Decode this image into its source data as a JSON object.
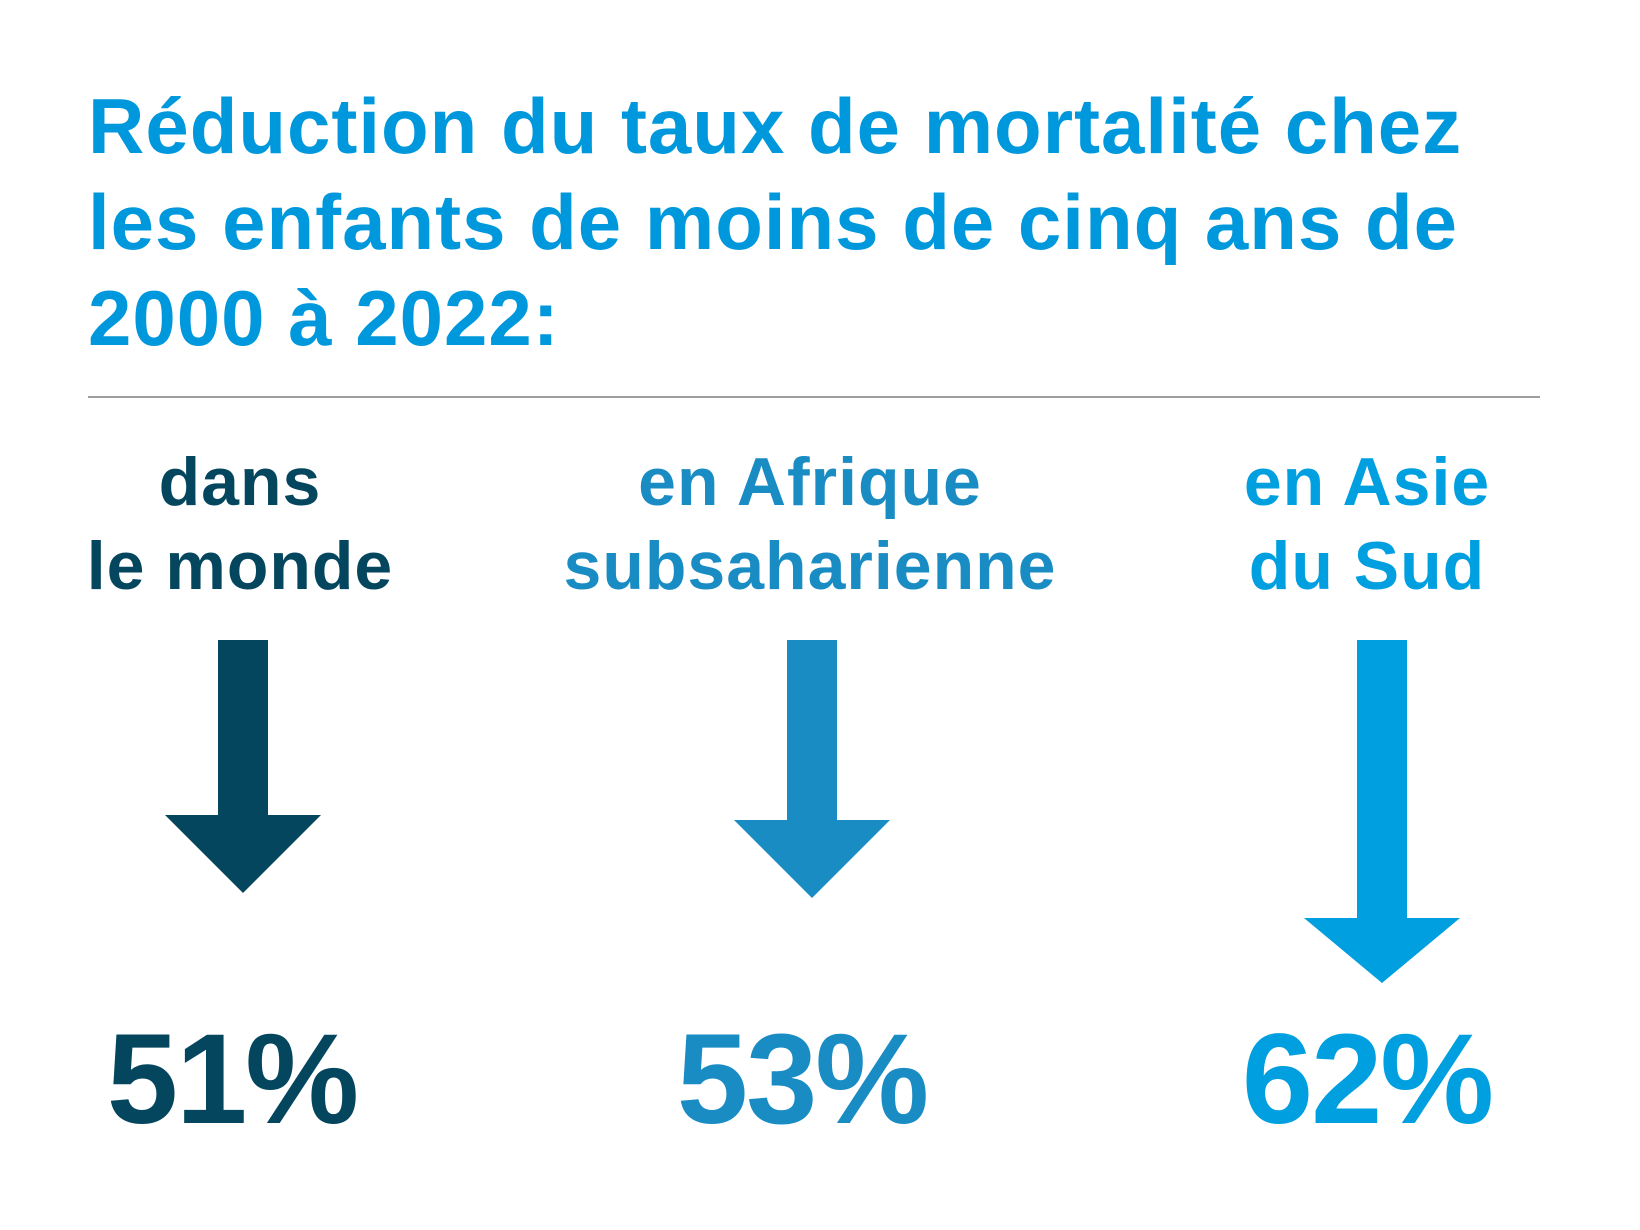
{
  "colors": {
    "title": "#0098dc",
    "world": "#05465f",
    "africa": "#1a8cc4",
    "asia": "#009fe0",
    "divider": "#9e9e9e"
  },
  "title": {
    "line1": "Réduction du taux de mortalité chez",
    "line2": "les enfants de moins de cinq ans de",
    "line3": "2000 à 2022:"
  },
  "regions": [
    {
      "label_line1": "dans",
      "label_line2": "le monde",
      "value": "51%",
      "arrow_icon": "arrow-down-icon"
    },
    {
      "label_line1": "en Afrique",
      "label_line2": "subsaharienne",
      "value": "53%",
      "arrow_icon": "arrow-down-icon"
    },
    {
      "label_line1": "en Asie",
      "label_line2": "du Sud",
      "value": "62%",
      "arrow_icon": "arrow-down-icon"
    }
  ]
}
